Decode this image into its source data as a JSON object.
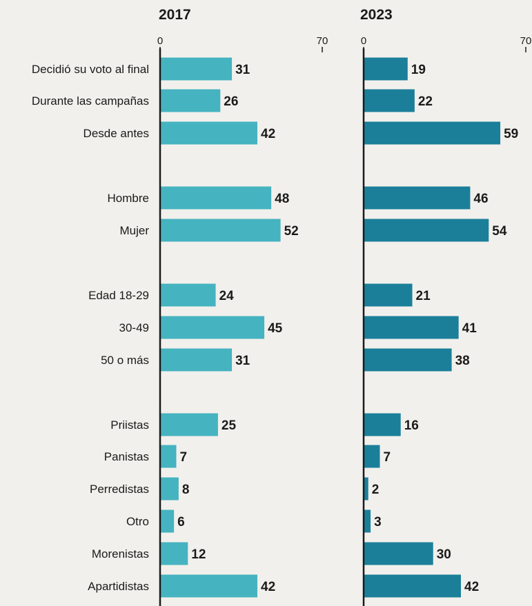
{
  "colors": {
    "panel_2017": "#46b3c0",
    "panel_2023": "#1b7f9a",
    "background": "#f2f0ec",
    "text": "#1a1a1a"
  },
  "chart_data": {
    "type": "bar",
    "orientation": "horizontal",
    "categories": [
      "Decidió su voto al final",
      "Durante las campañas",
      "Desde antes",
      "Hombre",
      "Mujer",
      "Edad 18-29",
      "30-49",
      "50 o más",
      "Priistas",
      "Panistas",
      "Perredistas",
      "Otro",
      "Morenistas",
      "Apartidistas"
    ],
    "groups": [
      [
        0,
        1,
        2
      ],
      [
        3,
        4
      ],
      [
        5,
        6,
        7
      ],
      [
        8,
        9,
        10,
        11,
        12,
        13
      ]
    ],
    "panels": [
      {
        "title": "2017",
        "ticks": [
          "0",
          "70"
        ],
        "xlim": [
          0,
          70
        ],
        "values": [
          31,
          26,
          42,
          48,
          52,
          24,
          45,
          31,
          25,
          7,
          8,
          6,
          12,
          42
        ]
      },
      {
        "title": "2023",
        "ticks": [
          "0",
          "70"
        ],
        "xlim": [
          0,
          70
        ],
        "values": [
          19,
          22,
          59,
          46,
          54,
          21,
          41,
          38,
          16,
          7,
          2,
          3,
          30,
          42
        ]
      }
    ]
  }
}
